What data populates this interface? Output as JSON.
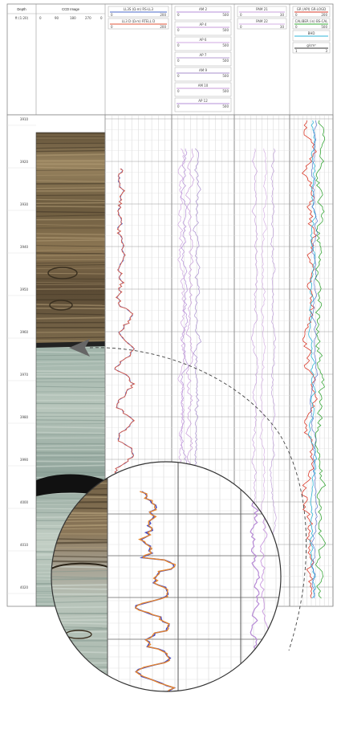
{
  "header": {
    "depth_track": {
      "title": "Depth",
      "unit": "ft (1:20)"
    },
    "image_track": {
      "title": "CCD Image",
      "scale": [
        "0",
        "90",
        "180",
        "270",
        "0"
      ]
    },
    "resistivity_track": {
      "curves": [
        {
          "name": "LL3S (Ω·m) RS-LL3",
          "min": "0",
          "max": "200",
          "color": "#4a67c8"
        },
        {
          "name": "LL3 D (Ω·m) RTELL D",
          "min": "0",
          "max": "200",
          "color": "#e0553a"
        }
      ]
    },
    "mid_track": {
      "curves": [
        {
          "name": "AM 2",
          "min": "0",
          "max": "500",
          "color": "#b58fd8"
        },
        {
          "name": "AP 4",
          "min": "0",
          "max": "500",
          "color": "#c79bd9"
        },
        {
          "name": "AP 6",
          "min": "0",
          "max": "500",
          "color": "#cfa7e0"
        },
        {
          "name": "AP 7",
          "min": "0",
          "max": "500",
          "color": "#b69bd1"
        },
        {
          "name": "AM 9",
          "min": "0",
          "max": "500",
          "color": "#a88fce"
        },
        {
          "name": "AM 10",
          "min": "0",
          "max": "500",
          "color": "#c79bd9"
        },
        {
          "name": "AP 12",
          "min": "0",
          "max": "500",
          "color": "#b58fd8"
        }
      ]
    },
    "phase_track": {
      "curves": [
        {
          "name": "PAM 21",
          "min": "0",
          "max": "30",
          "color": "#c8a2dc"
        },
        {
          "name": "PAM 22",
          "min": "0",
          "max": "30",
          "color": "#d6b2e4"
        }
      ]
    },
    "gr_track": {
      "curves": [
        {
          "name": "GR (API) GR-LOGD",
          "min": "0",
          "max": "200",
          "color": "#d93a2a"
        },
        {
          "name": "CALIBER (in) BS-CAL",
          "min": "0",
          "max": "500",
          "color": "#3aa83a"
        },
        {
          "name": "BHD",
          "min": "",
          "max": "",
          "color": "#2fb6d8"
        },
        {
          "name": "g/cm³",
          "min": "1",
          "max": "3",
          "color": "#333333"
        }
      ]
    }
  },
  "depth_labels": [
    "3910",
    "3920",
    "3930",
    "3940",
    "3950",
    "3960",
    "3970",
    "3980",
    "3990",
    "4000",
    "4010",
    "4020"
  ],
  "callout": {
    "description": "magnified-section"
  }
}
